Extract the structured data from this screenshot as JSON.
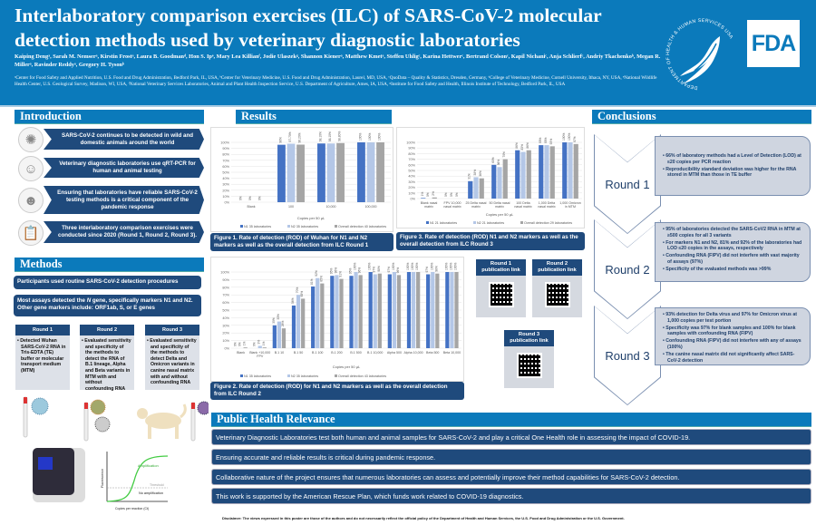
{
  "header": {
    "title": "Interlaboratory comparison exercises (ILC) of SARS-CoV-2 molecular detection methods used by veterinary diagnostic laboratories",
    "authors": "Kaiping Dengᵃ, Sarah M. Nemserᵃ, Kirstin Frostᵃ, Laura B. Goodmanᵈ, Hon S. Ipᵉ, Mary Lea Killianᶠ, Jodie Ulaszekᵍ, Shannon Kienerᵃ, Matthew Kmetᵃ, Steffen Uhligᶜ, Karina Hettwerᶜ, Bertrand Colsonᶜ, Kapil Nichaniᶜ, Anja Schlierfᶜ, Andriy Tkachenkoᵇ, Megan R. Millerᵃ, Ravinder Reddyᵃ, Gregory H. Tysonᵇ",
    "affiliations": "ᵃCenter for Food Safety and Applied Nutrition, U.S. Food and Drug Administration, Bedford Park, IL, USA, ᵇCenter for Veterinary Medicine, U.S. Food and Drug Administration, Laurel, MD, USA, ᶜQuoData – Quality & Statistics, Dresden, Germany, ᵈCollege of Veterinary Medicine, Cornell University, Ithaca, NY, USA, ᵉNational Wildlife Health Center, U.S. Geological Survey, Madison, WI, USA, ᶠNational Veterinary Services Laboratories, Animal and Plant Health Inspection Service, U.S. Department of Agriculture, Ames, IA, USA, ᵍInstitute for Food Safety and Health, Illinois Institute of Technology, Bedford Park, IL, USA",
    "hhs_logo_text": "DEPARTMENT OF HEALTH & HUMAN SERVICES USA",
    "fda_logo": "FDA",
    "brand_color": "#0b7abb"
  },
  "introduction": {
    "title": "Introduction",
    "items": [
      {
        "icon": "virus-icon",
        "text": "SARS-CoV-2 continues to be detected in wild and domestic animals around the world"
      },
      {
        "icon": "scientist-icon",
        "text": "Veterinary diagnostic laboratories use qRT-PCR for human and animal testing"
      },
      {
        "icon": "doctor-icon",
        "text": "Ensuring that laboratories have reliable SARS-CoV-2 testing methods is a critical component of the pandemic response"
      },
      {
        "icon": "clipboard-icon",
        "text": "Three interlaboratory comparison exercises were conducted since 2020 (Round 1, Round 2, Round 3)."
      }
    ]
  },
  "methods": {
    "title": "Methods",
    "box1": "Participants used routine SARS-CoV-2 detection procedures",
    "box2_a": "Most assays detected the ",
    "box2_gene": "N",
    "box2_b": " gene, specifically markers N1 and N2. Other gene markers include: ORF1ab, S, or E genes",
    "rounds": [
      {
        "title": "Round 1",
        "text": "Detected Wuhan SARS-CoV-2 RNA in Tris-EDTA (TE) buffer or molecular transport medium (MTM)"
      },
      {
        "title": "Round 2",
        "text": "Evaluated sensitivity and specificity of the methods to detect the RNA of B.1 lineage, Alpha and Beta variants in MTM with and without confounding RNA"
      },
      {
        "title": "Round 3",
        "text": "Evaluated sensitivity and specificity of the methods to detect Delta and Omicron variants in canine nasal matrix with and without confounding RNA"
      }
    ],
    "pcr_plot": {
      "ylabel": "Fluorescence",
      "xlabel": "Copies per reaction (Ct)",
      "amplification": "Amplification",
      "threshold": "Threshold",
      "no_amplification": "No amplification"
    }
  },
  "results": {
    "title": "Results"
  },
  "chart_data": [
    {
      "type": "bar",
      "id": "fig1",
      "xlabel": "Copies per 50 µL",
      "ylim": [
        0,
        100
      ],
      "yticks_step": 10,
      "grid": true,
      "legend": "bottom",
      "categories": [
        "Blank",
        "100",
        "10,000",
        "100,000"
      ],
      "series": [
        {
          "name": "N1 35 laboratories",
          "color": "#4472c4",
          "values": [
            0,
            96,
            98.1,
            100
          ],
          "labels": [
            "0%",
            "96%",
            "98.10%",
            "100%"
          ]
        },
        {
          "name": "N2 35 laboratories",
          "color": "#b4c7e7",
          "values": [
            0,
            97.7,
            98.1,
            100
          ],
          "labels": [
            "0%",
            "97.70%",
            "98.10%",
            "100%"
          ]
        },
        {
          "name": "Overall detection 40 laboratories",
          "color": "#a5a5a5",
          "values": [
            0,
            96.2,
            98.8,
            100
          ],
          "labels": [
            "0%",
            "96.20%",
            "98.80%",
            "100%"
          ]
        }
      ],
      "caption": "Figure 1. Rate of detection (ROD) of Wuhan for N1 and N2 markers as well as the overall detection from ILC Round 1"
    },
    {
      "type": "bar",
      "id": "fig2",
      "xlabel": "Copies per 50 µL",
      "ylim": [
        0,
        100
      ],
      "yticks_step": 10,
      "grid": true,
      "legend": "bottom",
      "categories": [
        "Blank",
        "Blank +10,000 FPV",
        "B.1 10",
        "B.1 50",
        "B.1 100",
        "B.1 200",
        "B.1 500",
        "B.1 10,000",
        "Alpha 500",
        "Alpha 10,000",
        "Beta 500",
        "Beta 10,000"
      ],
      "series": [
        {
          "name": "N1 35 laboratories",
          "color": "#4472c4",
          "values": [
            0,
            0,
            30,
            56,
            81,
            95,
            95,
            100,
            97,
            100,
            97,
            100
          ]
        },
        {
          "name": "N2 35 laboratories",
          "color": "#b4c7e7",
          "values": [
            0,
            3,
            35,
            70,
            92,
            96,
            100,
            97,
            100,
            100,
            100,
            100
          ]
        },
        {
          "name": "Overall detection 43 laboratories",
          "color": "#a5a5a5",
          "values": [
            1,
            1,
            26,
            65,
            85,
            91,
            96,
            98,
            96,
            100,
            98,
            100
          ]
        }
      ],
      "caption": "Figure 2. Rate of detection (ROD) for  N1 and N2 markers as well as the overall detection from ILC Round 2"
    },
    {
      "type": "bar",
      "id": "fig3",
      "xlabel": "Copies per 50 µL",
      "ylim": [
        0,
        100
      ],
      "yticks_step": 10,
      "grid": true,
      "legend": "bottom",
      "categories": [
        "Blank nasal matrix",
        "FPV 10,000 nasal matrix",
        "25 Delta nasal matrix",
        "50 Delta nasal matrix",
        "100 Delta nasal matrix",
        "1,000 Delta nasal matrix",
        "1,000 Omicron in MTM"
      ],
      "series": [
        {
          "name": "N1 21 laboratories",
          "color": "#4472c4",
          "values": [
            1,
            0,
            31,
            60,
            86,
            95,
            100
          ]
        },
        {
          "name": "N2 21 laboratories",
          "color": "#b4c7e7",
          "values": [
            0,
            0,
            38,
            56,
            83,
            95,
            100
          ]
        },
        {
          "name": "Overall detection 29 laboratories",
          "color": "#a5a5a5",
          "values": [
            2,
            0,
            36,
            70,
            86,
            93,
            97
          ]
        }
      ],
      "caption": "Figure  3. Rate of detection (ROD) N1 and N2 markers as well as the overall detection from ILC Round 3"
    }
  ],
  "publication_links": [
    {
      "label": "Round 1 publication link"
    },
    {
      "label": "Round 2 publication link"
    },
    {
      "label": "Round 3 publication link"
    }
  ],
  "conclusions": {
    "title": "Conclusions",
    "rounds": [
      {
        "label": "Round 1",
        "points": [
          "66% of laboratory methods had a Level of Detection (LOD) at ≤20 copies per PCR reaction",
          "Reproducibility standard deviation was higher for the RNA stored in MTM than those in TE buffer"
        ]
      },
      {
        "label": "Round 2",
        "points": [
          "95% of laboratories detected the SARS-CoV2 RNA in MTM at ≥500 copies for all 3 variants",
          "For markers N1 and N2, 81% and 92% of the laboratories had LOD ≤20 copies in the assays, respectively",
          "Confounding RNA (FIPV) did not interfere with vast majority of assays (97%)",
          "Specificity of the evaluated methods was >99%"
        ]
      },
      {
        "label": "Round 3",
        "points": [
          "93% detection for Delta virus and 97% for Omicron virus at 1,000 copies per test portion",
          "Specificity was 97% for blank samples and 100% for blank samples with confounding RNA (FIPV)",
          " Confounding RNA (FIPV) did not interfere with any of assays (100%)",
          "The canine nasal matrix did not significantly affect SARS-CoV-2 detection"
        ]
      }
    ]
  },
  "public_health": {
    "title": "Public Health Relevance",
    "items": [
      "Veterinary Diagnostic Laboratories test both human and animal samples for SARS-CoV-2 and play a critical One Health role in assessing the impact of COVID-19.",
      "Ensuring accurate and reliable results is critical during pandemic response.",
      "Collaborative nature of the project ensures that numerous laboratories can assess and potentially improve their method capabilities for SARS-CoV-2 detection.",
      "This work is supported by the American Rescue Plan, which funds work related to COVID-19 diagnostics."
    ]
  },
  "disclaimer": "Disclaimer: The views expressed in this poster are those of the authors and do not necessarily reflect the official policy of the Department of Health and Human Services, the U.S. Food and Drug Administration or the U.S. Government."
}
